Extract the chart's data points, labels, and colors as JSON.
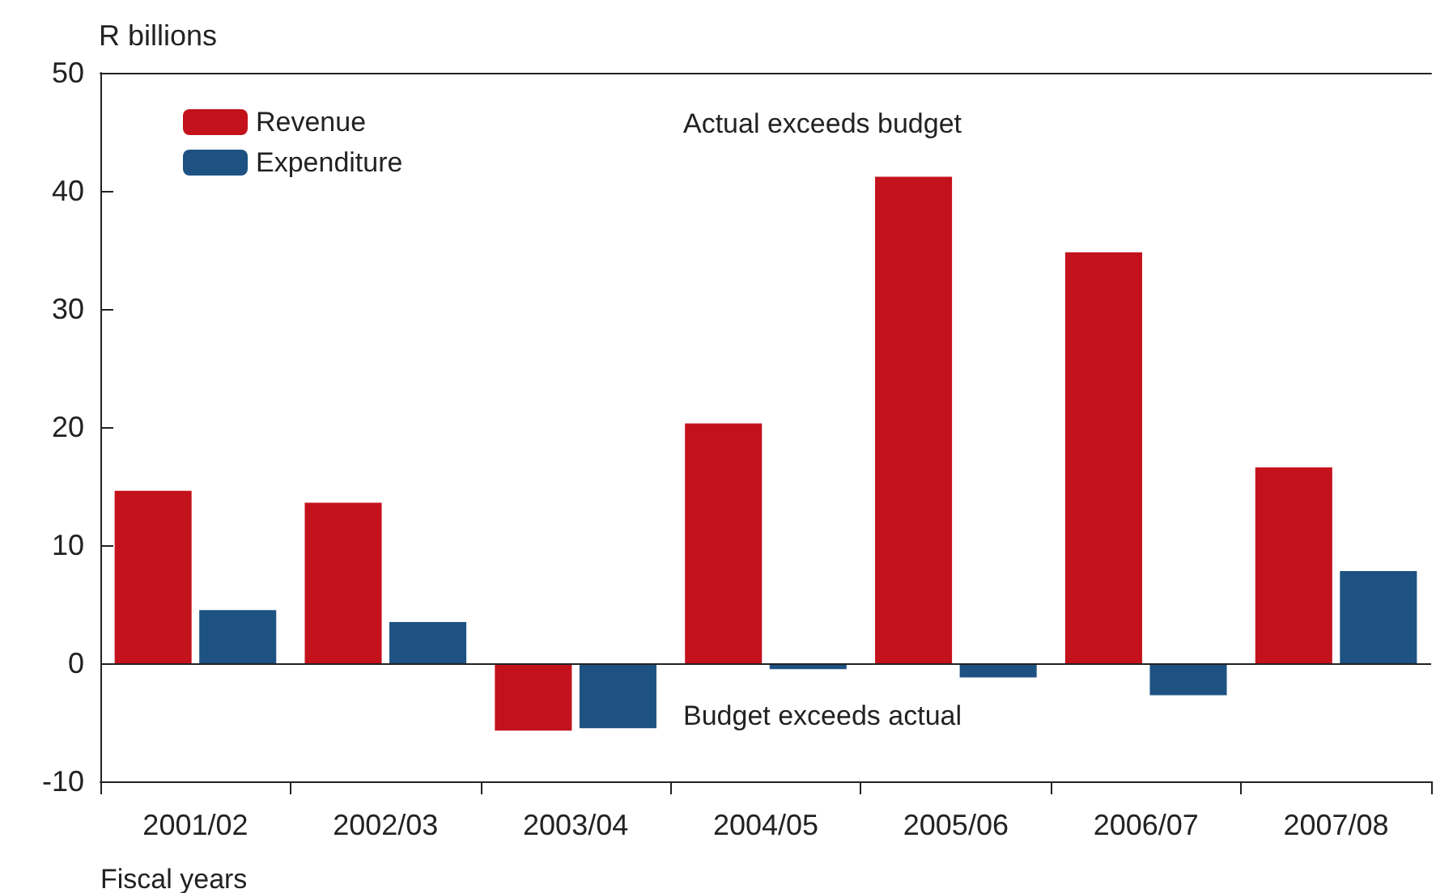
{
  "chart_data": {
    "type": "bar",
    "xlabel": "Fiscal years",
    "ylabel": "R billions",
    "categories": [
      "2001/02",
      "2002/03",
      "2003/04",
      "2004/05",
      "2005/06",
      "2006/07",
      "2007/08"
    ],
    "series": [
      {
        "name": "Revenue",
        "color": "#c4121d",
        "values": [
          14.6,
          13.6,
          -5.7,
          20.3,
          41.2,
          34.8,
          16.6
        ]
      },
      {
        "name": "Expenditure",
        "color": "#1d5282",
        "values": [
          4.5,
          3.5,
          -5.5,
          -0.5,
          -1.2,
          -2.7,
          7.8
        ]
      }
    ],
    "ylim": [
      -10,
      50
    ],
    "yticks": [
      -10,
      0,
      10,
      20,
      30,
      40,
      50
    ],
    "grid": false,
    "legend": "top left",
    "ref_lines": [
      {
        "axis": "y",
        "value": 0
      }
    ],
    "annotations": [
      "Actual exceeds budget",
      "Budget exceeds actual"
    ]
  }
}
